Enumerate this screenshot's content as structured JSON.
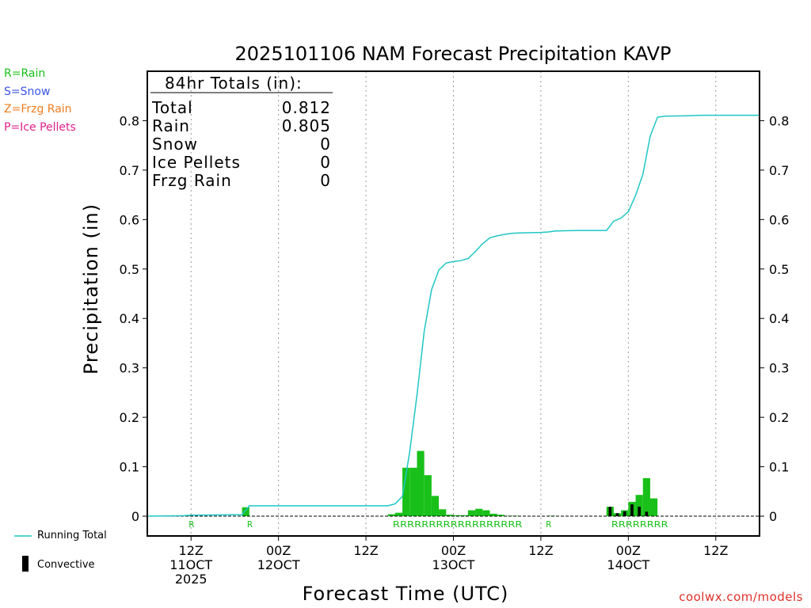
{
  "legend": {
    "rain": {
      "text": "R=Rain",
      "color": "#19c019"
    },
    "snow": {
      "text": "S=Snow",
      "color": "#3a55e8"
    },
    "frzg": {
      "text": "Z=Frzg Rain",
      "color": "#f07d20"
    },
    "ice": {
      "text": "P=Ice Pellets",
      "color": "#e0208c"
    }
  },
  "bottom_legend": {
    "running_total": "Running Total",
    "convective": "Convective"
  },
  "credit": "coolwx.com/models",
  "chart_data": {
    "type": "bar",
    "title": "2025101106 NAM Forecast Precipitation KAVP",
    "xlabel": "Forecast Time (UTC)",
    "ylabel": "Precipitation (in)",
    "ylim": [
      -0.04,
      0.9
    ],
    "yticks": [
      0,
      0.1,
      0.2,
      0.3,
      0.4,
      0.5,
      0.6,
      0.7,
      0.8
    ],
    "xlim_hours_from_init": [
      0,
      84
    ],
    "init": "2025101106",
    "x_ticks": [
      {
        "hour": 6,
        "l1": "12Z",
        "l2": "11OCT",
        "l3": "2025"
      },
      {
        "hour": 18,
        "l1": "00Z",
        "l2": "12OCT",
        "l3": ""
      },
      {
        "hour": 30,
        "l1": "12Z",
        "l2": "",
        "l3": ""
      },
      {
        "hour": 42,
        "l1": "00Z",
        "l2": "13OCT",
        "l3": ""
      },
      {
        "hour": 54,
        "l1": "12Z",
        "l2": "",
        "l3": ""
      },
      {
        "hour": 66,
        "l1": "00Z",
        "l2": "14OCT",
        "l3": ""
      },
      {
        "hour": 78,
        "l1": "12Z",
        "l2": "",
        "l3": ""
      }
    ],
    "totals_box": {
      "header": "84hr Totals (in):",
      "rows": [
        {
          "label": "Total",
          "value": "0.812"
        },
        {
          "label": "Rain",
          "value": "0.805"
        },
        {
          "label": "Snow",
          "value": "0"
        },
        {
          "label": "Ice Pellets",
          "value": "0"
        },
        {
          "label": "Frzg Rain",
          "value": "0"
        }
      ]
    },
    "series": [
      {
        "name": "Hourly Precipitation",
        "color": "#19c019",
        "bars": [
          {
            "start": 5.0,
            "end": 6.0,
            "value": 0.001
          },
          {
            "start": 13.0,
            "end": 14.0,
            "value": 0.018
          },
          {
            "start": 33.0,
            "end": 34.0,
            "value": 0.004
          },
          {
            "start": 34.0,
            "end": 35.0,
            "value": 0.007
          },
          {
            "start": 35.0,
            "end": 36.0,
            "value": 0.098
          },
          {
            "start": 36.0,
            "end": 37.0,
            "value": 0.098
          },
          {
            "start": 37.0,
            "end": 38.0,
            "value": 0.132
          },
          {
            "start": 38.0,
            "end": 39.0,
            "value": 0.083
          },
          {
            "start": 39.0,
            "end": 40.0,
            "value": 0.041
          },
          {
            "start": 40.0,
            "end": 41.0,
            "value": 0.014
          },
          {
            "start": 41.0,
            "end": 42.0,
            "value": 0.003
          },
          {
            "start": 42.0,
            "end": 43.0,
            "value": 0.002
          },
          {
            "start": 43.0,
            "end": 44.0,
            "value": 0.002
          },
          {
            "start": 44.0,
            "end": 45.0,
            "value": 0.012
          },
          {
            "start": 45.0,
            "end": 46.0,
            "value": 0.015
          },
          {
            "start": 46.0,
            "end": 47.0,
            "value": 0.012
          },
          {
            "start": 47.0,
            "end": 48.0,
            "value": 0.005
          },
          {
            "start": 48.0,
            "end": 49.0,
            "value": 0.003
          },
          {
            "start": 49.0,
            "end": 50.0,
            "value": 0.001
          },
          {
            "start": 50.0,
            "end": 51.0,
            "value": 0.001
          },
          {
            "start": 55.0,
            "end": 56.0,
            "value": 0.001
          },
          {
            "start": 63.0,
            "end": 64.0,
            "value": 0.019
          },
          {
            "start": 64.0,
            "end": 65.0,
            "value": 0.006
          },
          {
            "start": 65.0,
            "end": 66.0,
            "value": 0.012
          },
          {
            "start": 66.0,
            "end": 67.0,
            "value": 0.029
          },
          {
            "start": 67.0,
            "end": 68.0,
            "value": 0.043
          },
          {
            "start": 68.0,
            "end": 69.0,
            "value": 0.077
          },
          {
            "start": 69.0,
            "end": 70.0,
            "value": 0.036
          }
        ]
      },
      {
        "name": "Convective",
        "color": "#000000",
        "bars": [
          {
            "start": 63.3,
            "end": 63.7,
            "value": 0.019
          },
          {
            "start": 64.3,
            "end": 64.7,
            "value": 0.006
          },
          {
            "start": 65.3,
            "end": 65.7,
            "value": 0.01
          },
          {
            "start": 66.3,
            "end": 66.7,
            "value": 0.024
          },
          {
            "start": 67.3,
            "end": 67.7,
            "value": 0.019
          },
          {
            "start": 68.3,
            "end": 68.7,
            "value": 0.009
          }
        ]
      },
      {
        "name": "Running Total",
        "color": "#1fc6c6",
        "points": [
          [
            0,
            0.0
          ],
          [
            5,
            0.001
          ],
          [
            6,
            0.002
          ],
          [
            13,
            0.003
          ],
          [
            14,
            0.021
          ],
          [
            33,
            0.021
          ],
          [
            34,
            0.025
          ],
          [
            35,
            0.04
          ],
          [
            36,
            0.13
          ],
          [
            37,
            0.245
          ],
          [
            38,
            0.375
          ],
          [
            39,
            0.458
          ],
          [
            40,
            0.498
          ],
          [
            41,
            0.512
          ],
          [
            42,
            0.515
          ],
          [
            43,
            0.517
          ],
          [
            44,
            0.521
          ],
          [
            45,
            0.535
          ],
          [
            46,
            0.551
          ],
          [
            47,
            0.563
          ],
          [
            48,
            0.567
          ],
          [
            49,
            0.57
          ],
          [
            50,
            0.572
          ],
          [
            51,
            0.573
          ],
          [
            54,
            0.574
          ],
          [
            55,
            0.575
          ],
          [
            56,
            0.577
          ],
          [
            59,
            0.578
          ],
          [
            63,
            0.578
          ],
          [
            64,
            0.597
          ],
          [
            65,
            0.603
          ],
          [
            66,
            0.616
          ],
          [
            67,
            0.649
          ],
          [
            68,
            0.692
          ],
          [
            69,
            0.769
          ],
          [
            70,
            0.807
          ],
          [
            71,
            0.809
          ],
          [
            74,
            0.81
          ],
          [
            76,
            0.811
          ],
          [
            84,
            0.811
          ]
        ]
      }
    ],
    "ptype_rows": [
      {
        "start": 6,
        "text": "R"
      },
      {
        "start": 14,
        "text": "R"
      },
      {
        "start": 34,
        "text": "RRRRRRRRRRRRRRRRRR"
      },
      {
        "start": 55,
        "text": "R"
      },
      {
        "start": 64,
        "text": "RRRRRRRR"
      }
    ]
  }
}
